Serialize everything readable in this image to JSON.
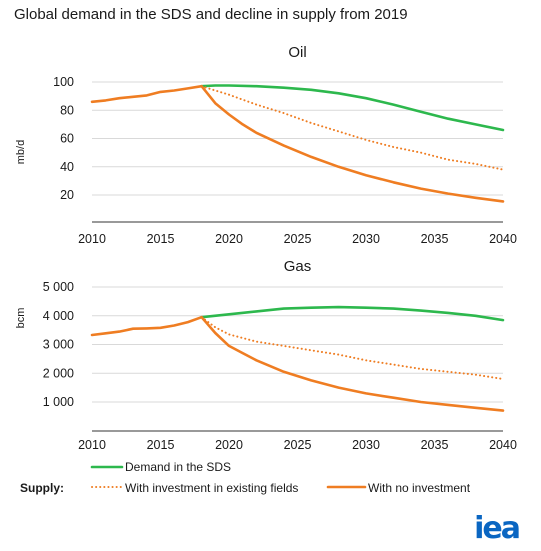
{
  "title": "Global demand in the SDS and decline in supply from 2019",
  "logo": "iea",
  "colors": {
    "demand": "#2db84d",
    "supply": "#ef7d22",
    "grid": "#d9d9d9"
  },
  "legend": {
    "supply_label": "Supply:",
    "items": [
      {
        "label": "Demand in the SDS",
        "style": "solid",
        "color": "#2db84d"
      },
      {
        "label": "With investment in existing fields",
        "style": "dotted",
        "color": "#ef7d22"
      },
      {
        "label": "With no investment",
        "style": "solid",
        "color": "#ef7d22"
      }
    ]
  },
  "chart_data": [
    {
      "type": "line",
      "title": "Oil",
      "ylabel": "mb/d",
      "xlabel": "",
      "xlim": [
        2010,
        2040
      ],
      "ylim": [
        10,
        100
      ],
      "xticks": [
        2010,
        2015,
        2020,
        2025,
        2030,
        2035,
        2040
      ],
      "yticks": [
        20,
        40,
        60,
        80,
        100
      ],
      "ytick_labels": [
        "20",
        "40",
        "60",
        "80",
        "100"
      ],
      "grid": true,
      "series": [
        {
          "name": "Historical",
          "style": "solid",
          "color": "#ef7d22",
          "x": [
            2010,
            2011,
            2012,
            2013,
            2014,
            2015,
            2016,
            2017,
            2018
          ],
          "y": [
            86,
            87,
            88.5,
            89.5,
            90.5,
            93,
            94,
            95.5,
            97
          ]
        },
        {
          "name": "Demand in the SDS",
          "style": "solid",
          "color": "#2db84d",
          "x": [
            2018,
            2019,
            2020,
            2022,
            2024,
            2026,
            2028,
            2030,
            2032,
            2034,
            2036,
            2038,
            2040
          ],
          "y": [
            97,
            97.5,
            97.5,
            97,
            96,
            94.5,
            92,
            88.5,
            84,
            79,
            74,
            70,
            66
          ]
        },
        {
          "name": "With investment in existing fields",
          "style": "dotted",
          "color": "#ef7d22",
          "x": [
            2018,
            2019,
            2020,
            2022,
            2024,
            2026,
            2028,
            2030,
            2032,
            2034,
            2036,
            2038,
            2040
          ],
          "y": [
            97,
            94,
            91,
            84,
            78,
            71,
            65,
            59,
            54,
            50,
            45,
            42,
            38
          ]
        },
        {
          "name": "With no investment",
          "style": "solid",
          "color": "#ef7d22",
          "x": [
            2018,
            2019,
            2020,
            2021,
            2022,
            2024,
            2026,
            2028,
            2030,
            2032,
            2034,
            2036,
            2038,
            2040
          ],
          "y": [
            97,
            85,
            77,
            70,
            64,
            55,
            47,
            40,
            34,
            29,
            24.5,
            21,
            18,
            15.5
          ]
        }
      ]
    },
    {
      "type": "line",
      "title": "Gas",
      "ylabel": "bcm",
      "xlabel": "",
      "xlim": [
        2010,
        2040
      ],
      "ylim": [
        0,
        5000
      ],
      "xticks": [
        2010,
        2015,
        2020,
        2025,
        2030,
        2035,
        2040
      ],
      "yticks": [
        1000,
        2000,
        3000,
        4000,
        5000
      ],
      "ytick_labels": [
        "1 000",
        "2 000",
        "3 000",
        "4 000",
        "5 000"
      ],
      "grid": true,
      "series": [
        {
          "name": "Historical",
          "style": "solid",
          "color": "#ef7d22",
          "x": [
            2010,
            2011,
            2012,
            2013,
            2014,
            2015,
            2016,
            2017,
            2018
          ],
          "y": [
            3330,
            3390,
            3450,
            3550,
            3560,
            3580,
            3660,
            3780,
            3950
          ]
        },
        {
          "name": "Demand in the SDS",
          "style": "solid",
          "color": "#2db84d",
          "x": [
            2018,
            2020,
            2022,
            2024,
            2026,
            2028,
            2030,
            2032,
            2034,
            2036,
            2038,
            2040
          ],
          "y": [
            3950,
            4050,
            4150,
            4250,
            4280,
            4300,
            4280,
            4250,
            4180,
            4100,
            4000,
            3850
          ]
        },
        {
          "name": "With investment in existing fields",
          "style": "dotted",
          "color": "#ef7d22",
          "x": [
            2018,
            2019,
            2020,
            2022,
            2024,
            2026,
            2028,
            2030,
            2032,
            2034,
            2036,
            2038,
            2040
          ],
          "y": [
            3950,
            3600,
            3350,
            3100,
            2950,
            2800,
            2650,
            2450,
            2300,
            2150,
            2050,
            1950,
            1800
          ]
        },
        {
          "name": "With no investment",
          "style": "solid",
          "color": "#ef7d22",
          "x": [
            2018,
            2019,
            2020,
            2021,
            2022,
            2024,
            2026,
            2028,
            2030,
            2032,
            2034,
            2036,
            2038,
            2040
          ],
          "y": [
            3950,
            3400,
            2950,
            2700,
            2450,
            2050,
            1750,
            1500,
            1300,
            1150,
            1000,
            900,
            800,
            700
          ]
        }
      ]
    }
  ]
}
